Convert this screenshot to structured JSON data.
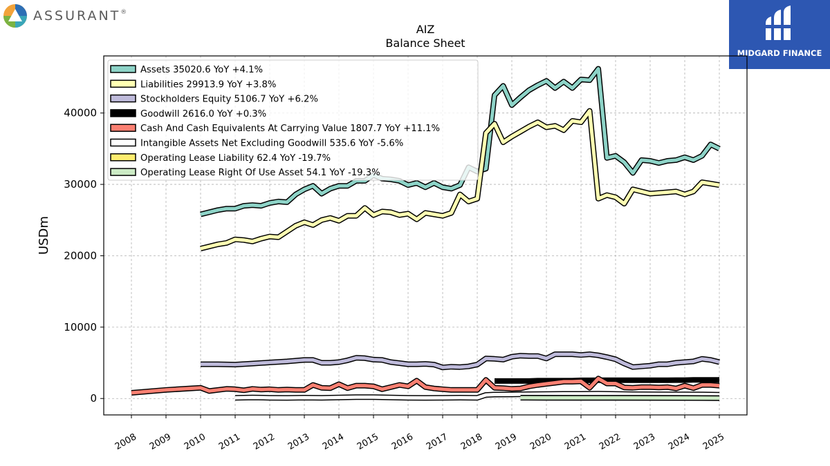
{
  "branding": {
    "left_logo_text": "ASSURANT",
    "left_logo_mark": "®",
    "right_logo_text": "MIDGARD FINANCE"
  },
  "chart_data": {
    "type": "line",
    "title": "AIZ",
    "subtitle": "Balance  Sheet",
    "xlabel": "",
    "ylabel": "USDm",
    "xlim": [
      2007.2,
      2025.8
    ],
    "ylim": [
      -2300,
      48000
    ],
    "x_ticks": [
      "2008",
      "2009",
      "2010",
      "2011",
      "2012",
      "2013",
      "2014",
      "2015",
      "2016",
      "2017",
      "2018",
      "2019",
      "2020",
      "2021",
      "2022",
      "2023",
      "2024",
      "2025"
    ],
    "y_ticks": [
      0,
      10000,
      20000,
      30000,
      40000
    ],
    "y_tick_labels": [
      "0",
      "10000",
      "20000",
      "30000",
      "40000"
    ],
    "grid": true,
    "legend_position": "top-left",
    "series": [
      {
        "name": "Assets",
        "legend": "Assets  35020.6 YoY +4.1%",
        "color": "#8dd3c7",
        "x": [
          2010.0,
          2010.25,
          2010.5,
          2010.75,
          2011.0,
          2011.25,
          2011.5,
          2011.75,
          2012.0,
          2012.25,
          2012.5,
          2012.75,
          2013.0,
          2013.25,
          2013.5,
          2013.75,
          2014.0,
          2014.25,
          2014.5,
          2014.75,
          2015.0,
          2015.25,
          2015.5,
          2015.75,
          2016.0,
          2016.25,
          2016.5,
          2016.75,
          2017.0,
          2017.25,
          2017.5,
          2017.75,
          2018.0,
          2018.25,
          2018.5,
          2018.75,
          2019.0,
          2019.25,
          2019.5,
          2019.75,
          2020.0,
          2020.25,
          2020.5,
          2020.75,
          2021.0,
          2021.25,
          2021.5,
          2021.75,
          2022.0,
          2022.25,
          2022.5,
          2022.75,
          2023.0,
          2023.25,
          2023.5,
          2023.75,
          2024.0,
          2024.25,
          2024.5,
          2024.75,
          2025.0
        ],
        "y": [
          25800,
          26100,
          26400,
          26600,
          26600,
          27000,
          27100,
          27000,
          27400,
          27600,
          27500,
          28600,
          29300,
          29800,
          28700,
          29400,
          29800,
          29800,
          30500,
          30500,
          31300,
          30800,
          30700,
          30500,
          29900,
          30200,
          29600,
          30200,
          29600,
          29400,
          29900,
          32400,
          31800,
          32200,
          42500,
          43800,
          41100,
          42200,
          43200,
          43900,
          44500,
          43500,
          44400,
          43500,
          44700,
          44600,
          46200,
          33700,
          34000,
          33100,
          31600,
          33400,
          33300,
          33000,
          33300,
          33400,
          33800,
          33400,
          34000,
          35600,
          35000
        ]
      },
      {
        "name": "Liabilities",
        "legend": "Liabilities  29913.9 YoY +3.8%",
        "color": "#ffffb3",
        "x": [
          2010.0,
          2010.25,
          2010.5,
          2010.75,
          2011.0,
          2011.25,
          2011.5,
          2011.75,
          2012.0,
          2012.25,
          2012.5,
          2012.75,
          2013.0,
          2013.25,
          2013.5,
          2013.75,
          2014.0,
          2014.25,
          2014.5,
          2014.75,
          2015.0,
          2015.25,
          2015.5,
          2015.75,
          2016.0,
          2016.25,
          2016.5,
          2016.75,
          2017.0,
          2017.25,
          2017.5,
          2017.75,
          2018.0,
          2018.25,
          2018.5,
          2018.75,
          2019.0,
          2019.25,
          2019.5,
          2019.75,
          2020.0,
          2020.25,
          2020.5,
          2020.75,
          2021.0,
          2021.25,
          2021.5,
          2021.75,
          2022.0,
          2022.25,
          2022.5,
          2022.75,
          2023.0,
          2023.25,
          2023.5,
          2023.75,
          2024.0,
          2024.25,
          2024.5,
          2024.75,
          2025.0
        ],
        "y": [
          21000,
          21300,
          21600,
          21800,
          22300,
          22200,
          22000,
          22400,
          22700,
          22600,
          23400,
          24200,
          24700,
          24300,
          25000,
          25300,
          24900,
          25600,
          25600,
          26700,
          25700,
          26200,
          26100,
          25700,
          25900,
          25100,
          26000,
          25800,
          25600,
          26000,
          28600,
          27600,
          28000,
          37200,
          38500,
          35900,
          36700,
          37400,
          38100,
          38700,
          38000,
          38200,
          37600,
          38900,
          38700,
          40300,
          28000,
          28500,
          28200,
          27300,
          29300,
          29000,
          28700,
          28800,
          28900,
          29000,
          28600,
          29000,
          30300,
          30100,
          29900
        ]
      },
      {
        "name": "Stockholders Equity",
        "legend": "Stockholders Equity  5106.7 YoY +6.2%",
        "color": "#bebada",
        "x": [
          2010.0,
          2010.5,
          2011.0,
          2011.5,
          2012.0,
          2012.5,
          2013.0,
          2013.25,
          2013.5,
          2013.75,
          2014.0,
          2014.25,
          2014.5,
          2014.75,
          2015.0,
          2015.25,
          2015.5,
          2015.75,
          2016.0,
          2016.25,
          2016.5,
          2016.75,
          2017.0,
          2017.25,
          2017.5,
          2017.75,
          2018.0,
          2018.25,
          2018.5,
          2018.75,
          2019.0,
          2019.25,
          2019.5,
          2019.75,
          2020.0,
          2020.25,
          2020.5,
          2020.75,
          2021.0,
          2021.25,
          2021.5,
          2021.75,
          2022.0,
          2022.25,
          2022.5,
          2022.75,
          2023.0,
          2023.25,
          2023.5,
          2023.75,
          2024.0,
          2024.25,
          2024.5,
          2024.75,
          2025.0
        ],
        "y": [
          4800,
          4800,
          4750,
          4900,
          5050,
          5200,
          5400,
          5400,
          5000,
          5000,
          5100,
          5350,
          5700,
          5650,
          5450,
          5400,
          5100,
          4950,
          4800,
          4800,
          4850,
          4750,
          4350,
          4450,
          4400,
          4500,
          4750,
          5600,
          5550,
          5450,
          5850,
          6000,
          5950,
          5950,
          5600,
          6200,
          6200,
          6200,
          6100,
          6200,
          6050,
          5800,
          5500,
          4900,
          4400,
          4500,
          4600,
          4800,
          4800,
          5000,
          5100,
          5200,
          5550,
          5400,
          5100
        ]
      },
      {
        "name": "Goodwill",
        "legend": "Goodwill  2616.0 YoY +0.3%",
        "color": "#000000",
        "x": [
          2018.5,
          2018.75,
          2019.0,
          2019.25,
          2019.5,
          2019.75,
          2020.0,
          2020.25,
          2020.5,
          2020.75,
          2021.0,
          2021.25,
          2021.5,
          2021.75,
          2022.0,
          2022.25,
          2022.5,
          2022.75,
          2023.0,
          2023.25,
          2023.5,
          2023.75,
          2024.0,
          2024.25,
          2024.5,
          2024.75,
          2025.0
        ],
        "y": [
          2450,
          2450,
          2450,
          2450,
          2450,
          2500,
          2500,
          2500,
          2500,
          2500,
          2550,
          2550,
          2560,
          2560,
          2560,
          2560,
          2560,
          2560,
          2560,
          2570,
          2570,
          2580,
          2580,
          2600,
          2610,
          2610,
          2616
        ]
      },
      {
        "name": "Cash And Cash Equivalents At Carrying Value",
        "legend": "Cash And Cash Equivalents At Carrying Value  1807.7 YoY +11.1%",
        "color": "#fb8072",
        "x": [
          2008.0,
          2009.0,
          2010.0,
          2010.25,
          2010.5,
          2010.75,
          2011.0,
          2011.25,
          2011.5,
          2011.75,
          2012.0,
          2012.25,
          2012.5,
          2012.75,
          2013.0,
          2013.25,
          2013.5,
          2013.75,
          2014.0,
          2014.25,
          2014.5,
          2014.75,
          2015.0,
          2015.25,
          2015.5,
          2015.75,
          2016.0,
          2016.25,
          2016.5,
          2016.75,
          2017.0,
          2017.25,
          2017.5,
          2017.75,
          2018.0,
          2018.25,
          2018.5,
          2018.75,
          2019.0,
          2019.25,
          2019.5,
          2019.75,
          2020.0,
          2020.25,
          2020.5,
          2020.75,
          2021.0,
          2021.25,
          2021.5,
          2021.75,
          2022.0,
          2022.25,
          2022.5,
          2022.75,
          2023.0,
          2023.25,
          2023.5,
          2023.75,
          2024.0,
          2024.25,
          2024.5,
          2024.75,
          2025.0
        ],
        "y": [
          800,
          1200,
          1500,
          1050,
          1200,
          1350,
          1300,
          1150,
          1350,
          1250,
          1300,
          1200,
          1250,
          1200,
          1200,
          1900,
          1500,
          1450,
          2000,
          1450,
          1800,
          1800,
          1700,
          1300,
          1600,
          1900,
          1700,
          2500,
          1600,
          1400,
          1300,
          1200,
          1200,
          1200,
          1200,
          2600,
          1500,
          1450,
          1350,
          1400,
          1700,
          1900,
          2050,
          2200,
          2350,
          2350,
          2400,
          1500,
          2800,
          2100,
          2100,
          1550,
          1500,
          1600,
          1600,
          1550,
          1600,
          1400,
          1800,
          1450,
          1900,
          1900,
          1800
        ]
      },
      {
        "name": "Intangible Assets Net Excluding Goodwill",
        "legend": "Intangible Assets Net Excluding Goodwill  535.6 YoY -5.6%",
        "color": "#ffffff",
        "x": [
          2011.0,
          2011.5,
          2012.0,
          2012.5,
          2013.0,
          2013.5,
          2014.0,
          2014.5,
          2015.0,
          2015.5,
          2016.0,
          2016.5,
          2017.0,
          2017.5,
          2018.0,
          2018.25,
          2018.5,
          2019.0,
          2019.5,
          2020.0,
          2020.5,
          2021.0,
          2021.5,
          2022.0,
          2022.5,
          2023.0,
          2023.5,
          2024.0,
          2024.5,
          2025.0
        ],
        "y": [
          100,
          150,
          100,
          80,
          120,
          100,
          150,
          200,
          200,
          150,
          100,
          80,
          100,
          120,
          100,
          500,
          550,
          560,
          600,
          620,
          650,
          650,
          680,
          640,
          600,
          590,
          580,
          570,
          560,
          536
        ]
      },
      {
        "name": "Operating Lease Liability",
        "legend": "Operating Lease Liability  62.4 YoY -19.7%",
        "color": "#ffed6f",
        "x": [
          2019.25,
          2020.0,
          2021.0,
          2022.0,
          2023.0,
          2024.0,
          2025.0
        ],
        "y": [
          120,
          110,
          100,
          95,
          85,
          75,
          62
        ]
      },
      {
        "name": "Operating Lease Right Of Use Asset",
        "legend": "Operating Lease Right Of Use Asset  54.1 YoY -19.3%",
        "color": "#ccebc5",
        "x": [
          2019.25,
          2020.0,
          2021.0,
          2022.0,
          2023.0,
          2024.0,
          2025.0
        ],
        "y": [
          110,
          100,
          95,
          90,
          80,
          67,
          54
        ]
      }
    ]
  }
}
